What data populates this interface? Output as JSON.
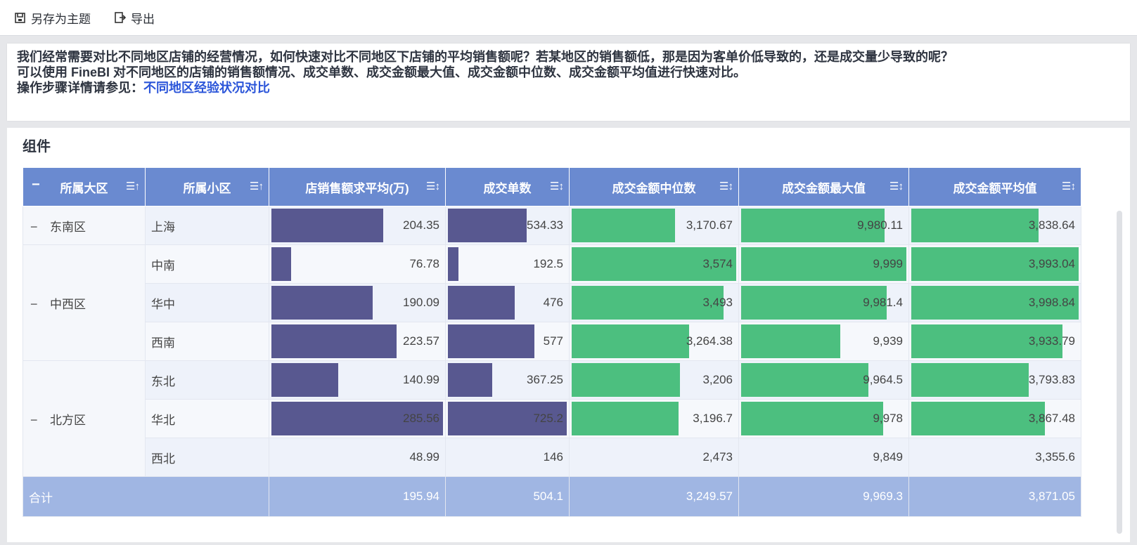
{
  "toolbar": {
    "save_theme": "另存为主题",
    "export": "导出"
  },
  "description": {
    "line1": "我们经常需要对比不同地区店铺的经营情况，如何快速对比不同地区下店铺的平均销售额呢？若某地区的销售额低，那是因为客单价低导致的，还是成交量少导致的呢？",
    "line2": "可以使用 FineBI 对不同地区的店铺的销售额情况、成交单数、成交金额最大值、成交金额中位数、成交金额平均值进行快速对比。",
    "line3_prefix": "操作步骤详情请参见：",
    "line3_link": "不同地区经验状况对比"
  },
  "component_title": "组件",
  "table": {
    "headers": [
      "所属大区",
      "所属小区",
      "店销售额求平均(万)",
      "成交单数",
      "成交金额中位数",
      "成交金额最大值",
      "成交金额平均值"
    ],
    "regions": [
      "东南区",
      "中西区",
      "北方区"
    ],
    "rows": [
      {
        "sub": "上海",
        "avg": "204.35",
        "orders": "534.33",
        "median": "3,170.67",
        "max": "9,980.11",
        "mean": "3,838.64"
      },
      {
        "sub": "中南",
        "avg": "76.78",
        "orders": "192.5",
        "median": "3,574",
        "max": "9,999",
        "mean": "3,993.04"
      },
      {
        "sub": "华中",
        "avg": "190.09",
        "orders": "476",
        "median": "3,493",
        "max": "9,981.4",
        "mean": "3,998.84"
      },
      {
        "sub": "西南",
        "avg": "223.57",
        "orders": "577",
        "median": "3,264.38",
        "max": "9,939",
        "mean": "3,933.79"
      },
      {
        "sub": "东北",
        "avg": "140.99",
        "orders": "367.25",
        "median": "3,206",
        "max": "9,964.5",
        "mean": "3,793.83"
      },
      {
        "sub": "华北",
        "avg": "285.56",
        "orders": "725.2",
        "median": "3,196.7",
        "max": "9,978",
        "mean": "3,867.48"
      },
      {
        "sub": "西北",
        "avg": "48.99",
        "orders": "146",
        "median": "2,473",
        "max": "9,849",
        "mean": "3,355.6"
      }
    ],
    "total": {
      "label": "合计",
      "avg": "195.94",
      "orders": "504.1",
      "median": "3,249.57",
      "max": "9,969.3",
      "mean": "3,871.05"
    }
  },
  "bar_fill_fraction": {
    "avg": [
      0.65,
      0.115,
      0.59,
      0.73,
      0.39,
      1.0,
      0.0
    ],
    "orders": [
      0.66,
      0.09,
      0.56,
      0.73,
      0.375,
      1.0,
      0.0
    ],
    "median": [
      0.63,
      1.0,
      0.925,
      0.715,
      0.66,
      0.65,
      0.0
    ],
    "max": [
      0.87,
      1.0,
      0.88,
      0.6,
      0.77,
      0.86,
      0.0
    ],
    "mean": [
      0.76,
      1.0,
      1.0,
      0.905,
      0.7,
      0.8,
      0.0
    ]
  },
  "colors": {
    "header": "#6a8ad0",
    "purple_bar": "#585890",
    "green_bar": "#4cbf7f",
    "total_row": "#a0b6e3",
    "link": "#2b55d9"
  }
}
